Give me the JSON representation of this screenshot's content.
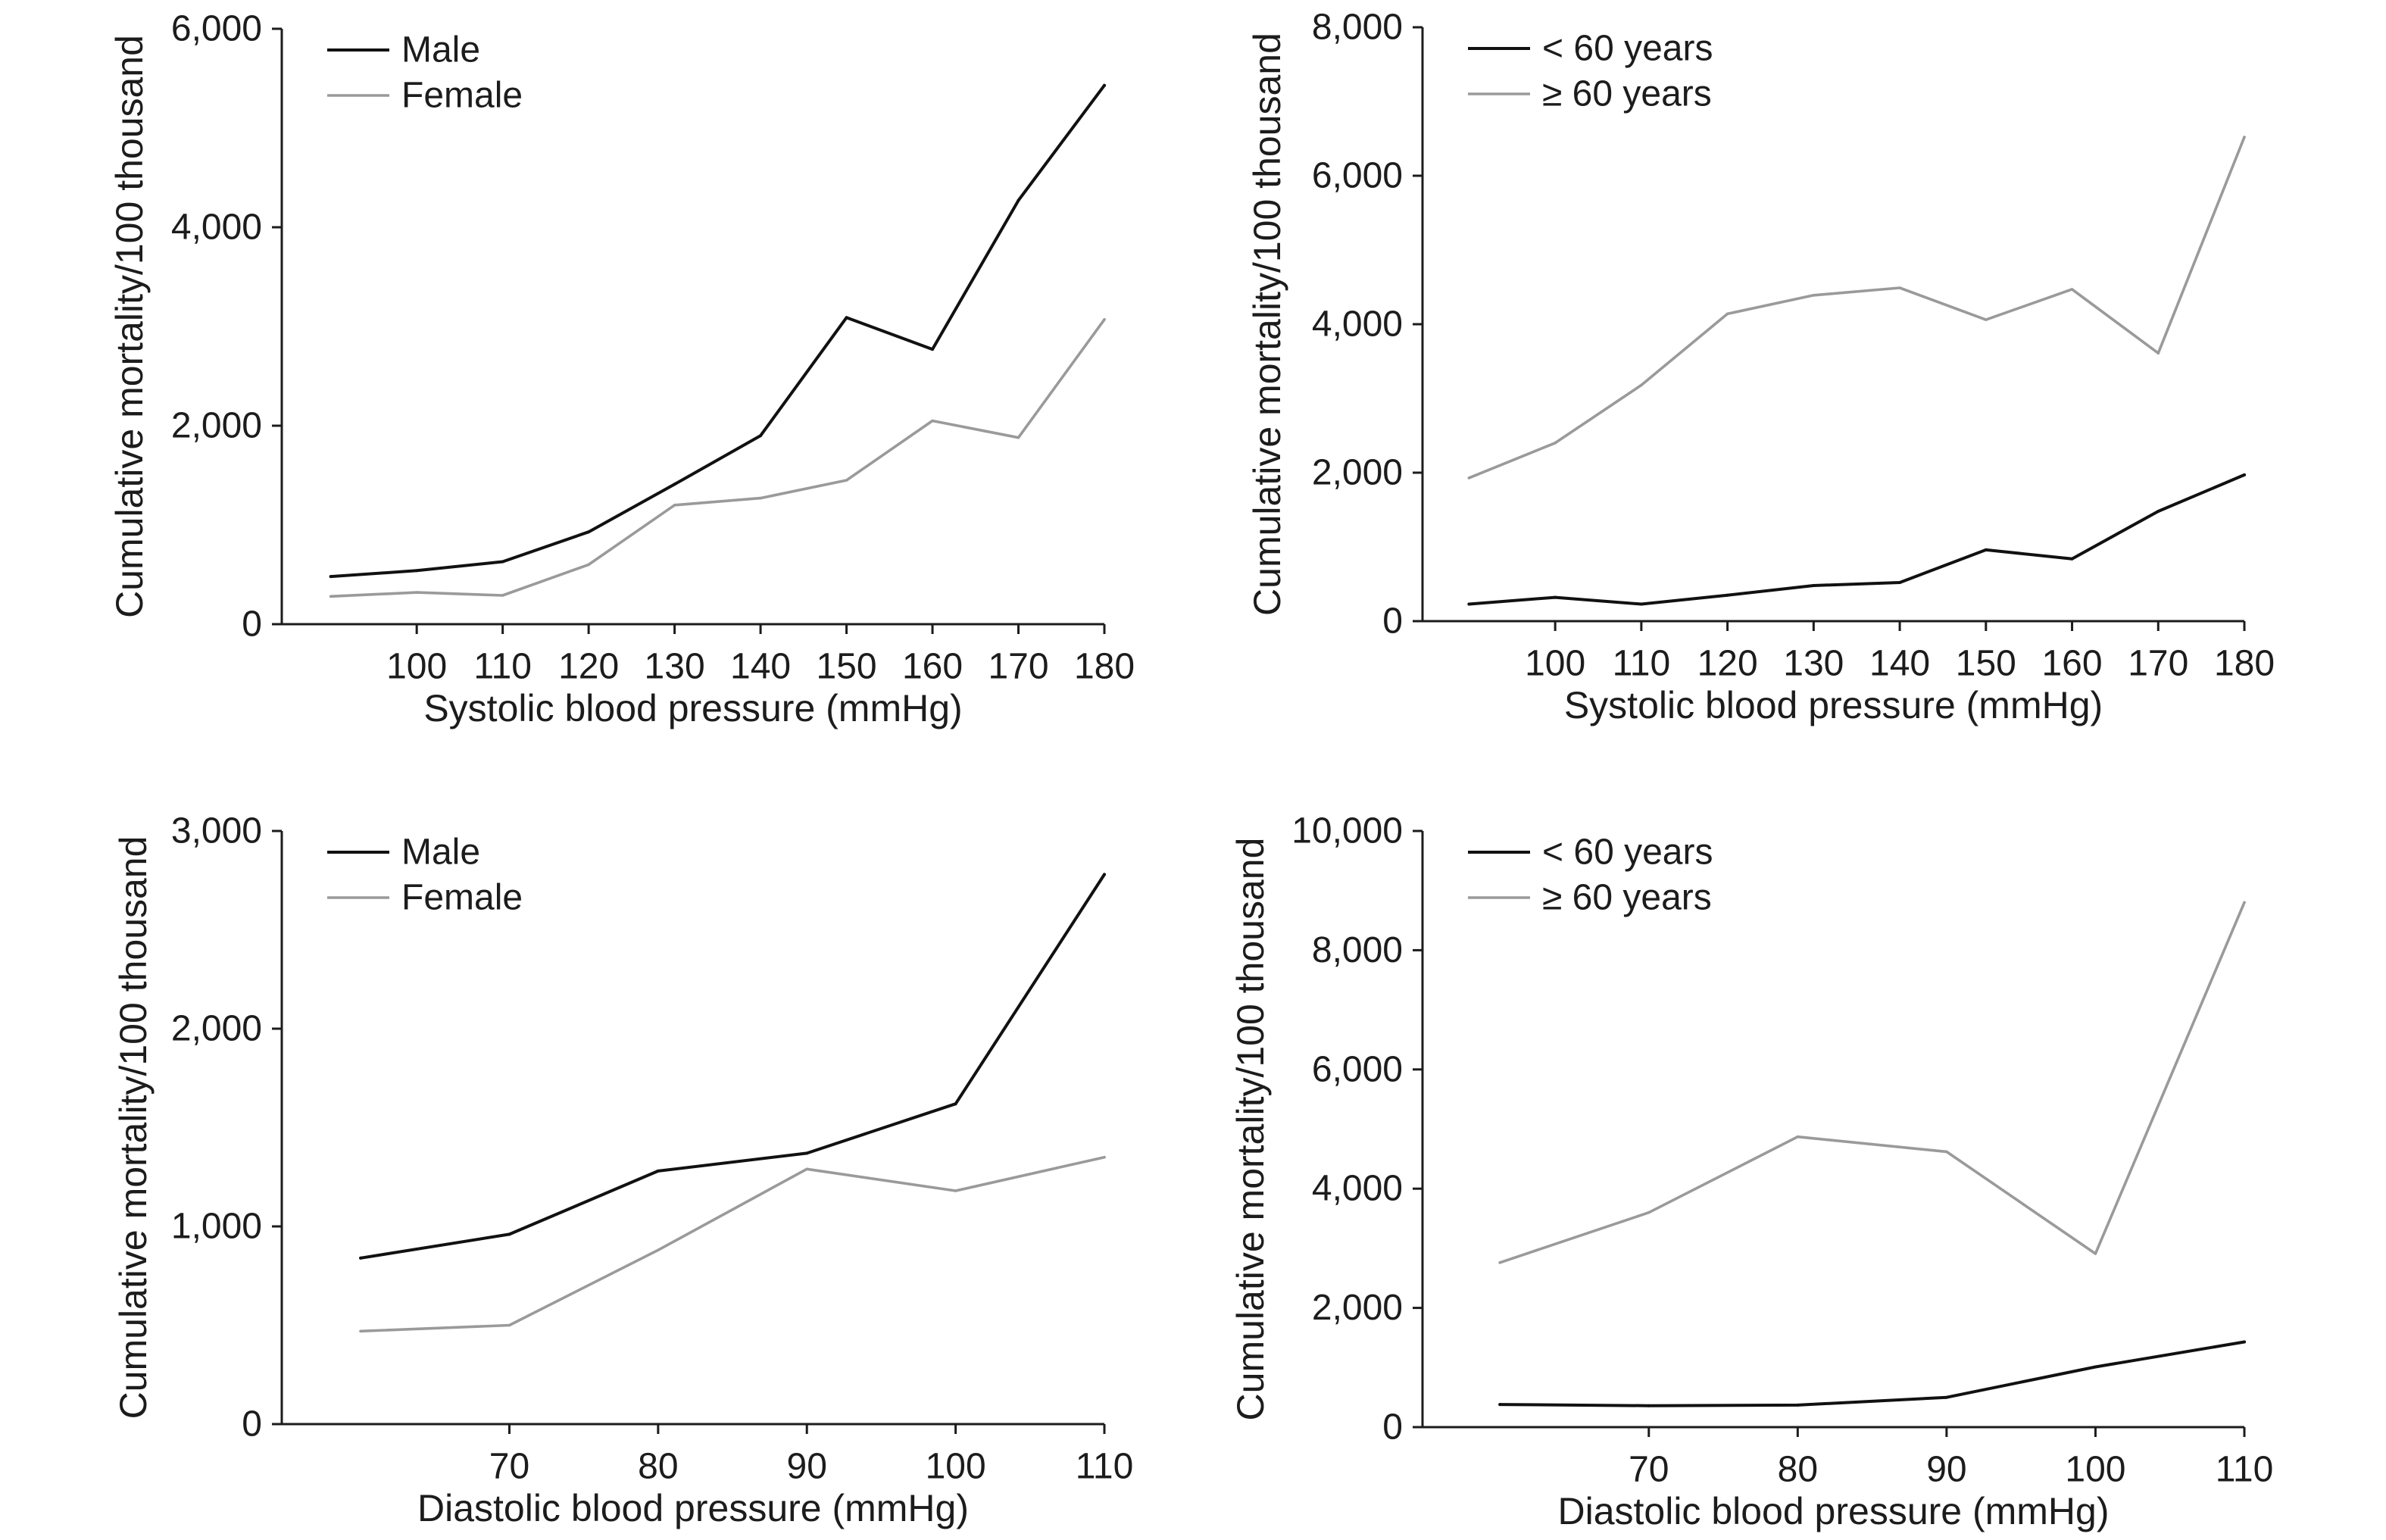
{
  "chart_data": [
    {
      "type": "line",
      "xlabel": "Systolic blood pressure (mmHg)",
      "ylabel": "Cumulative mortality/100 thousand",
      "x": [
        90,
        100,
        110,
        120,
        130,
        140,
        150,
        160,
        170,
        180
      ],
      "xticks": [
        100,
        110,
        120,
        130,
        140,
        150,
        160,
        170,
        180
      ],
      "xlim": [
        84.3,
        180
      ],
      "ylim": [
        0,
        6000
      ],
      "yticks": [
        0,
        2000,
        4000,
        6000
      ],
      "ytick_labels": [
        "0",
        "2,000",
        "4,000",
        "6,000"
      ],
      "grid": false,
      "legend": "top-left",
      "series": [
        {
          "name": "Male",
          "color": "#111111",
          "values": [
            480,
            540,
            630,
            930,
            1410,
            1900,
            3090,
            2770,
            4270,
            5430
          ]
        },
        {
          "name": "Female",
          "color": "#9a9a9a",
          "values": [
            280,
            320,
            290,
            600,
            1200,
            1270,
            1450,
            2050,
            1880,
            3070
          ]
        }
      ]
    },
    {
      "type": "line",
      "xlabel": "Systolic blood pressure (mmHg)",
      "ylabel": "Cumulative mortality/100 thousand",
      "x": [
        90,
        100,
        110,
        120,
        130,
        140,
        150,
        160,
        170,
        180
      ],
      "xticks": [
        100,
        110,
        120,
        130,
        140,
        150,
        160,
        170,
        180
      ],
      "xlim": [
        84.6,
        180
      ],
      "ylim": [
        0,
        8000
      ],
      "yticks": [
        0,
        2000,
        4000,
        6000,
        8000
      ],
      "ytick_labels": [
        "0",
        "2,000",
        "4,000",
        "6,000",
        "8,000"
      ],
      "grid": false,
      "legend": "top-left",
      "series": [
        {
          "name": "< 60 years",
          "color": "#111111",
          "values": [
            230,
            320,
            230,
            350,
            480,
            520,
            960,
            840,
            1480,
            1970
          ]
        },
        {
          "name": "≥ 60 years",
          "color": "#9a9a9a",
          "values": [
            1930,
            2400,
            3180,
            4140,
            4390,
            4490,
            4060,
            4470,
            3610,
            6520
          ]
        }
      ]
    },
    {
      "type": "line",
      "xlabel": "Diastolic blood pressure (mmHg)",
      "ylabel": "Cumulative mortality/100 thousand",
      "x": [
        60,
        70,
        80,
        90,
        100,
        110
      ],
      "xticks": [
        70,
        80,
        90,
        100,
        110
      ],
      "xlim": [
        54.7,
        110
      ],
      "ylim": [
        0,
        3000
      ],
      "yticks": [
        0,
        1000,
        2000,
        3000
      ],
      "ytick_labels": [
        "0",
        "1,000",
        "2,000",
        "3,000"
      ],
      "grid": false,
      "legend": "top-left",
      "series": [
        {
          "name": "Male",
          "color": "#111111",
          "values": [
            840,
            960,
            1280,
            1370,
            1620,
            2780
          ]
        },
        {
          "name": "Female",
          "color": "#9a9a9a",
          "values": [
            470,
            500,
            880,
            1290,
            1180,
            1350
          ]
        }
      ]
    },
    {
      "type": "line",
      "xlabel": "Diastolic blood pressure (mmHg)",
      "ylabel": "Cumulative mortality/100 thousand",
      "x": [
        60,
        70,
        80,
        90,
        100,
        110
      ],
      "xticks": [
        70,
        80,
        90,
        100,
        110
      ],
      "xlim": [
        54.8,
        110
      ],
      "ylim": [
        0,
        10000
      ],
      "yticks": [
        0,
        2000,
        4000,
        6000,
        8000,
        10000
      ],
      "ytick_labels": [
        "0",
        "2,000",
        "4,000",
        "6,000",
        "8,000",
        "10,000"
      ],
      "grid": false,
      "legend": "top-left",
      "series": [
        {
          "name": "< 60 years",
          "color": "#111111",
          "values": [
            380,
            360,
            370,
            500,
            1010,
            1430
          ]
        },
        {
          "name": "≥ 60 years",
          "color": "#9a9a9a",
          "values": [
            2760,
            3600,
            4870,
            4620,
            2910,
            8800
          ]
        }
      ]
    }
  ]
}
